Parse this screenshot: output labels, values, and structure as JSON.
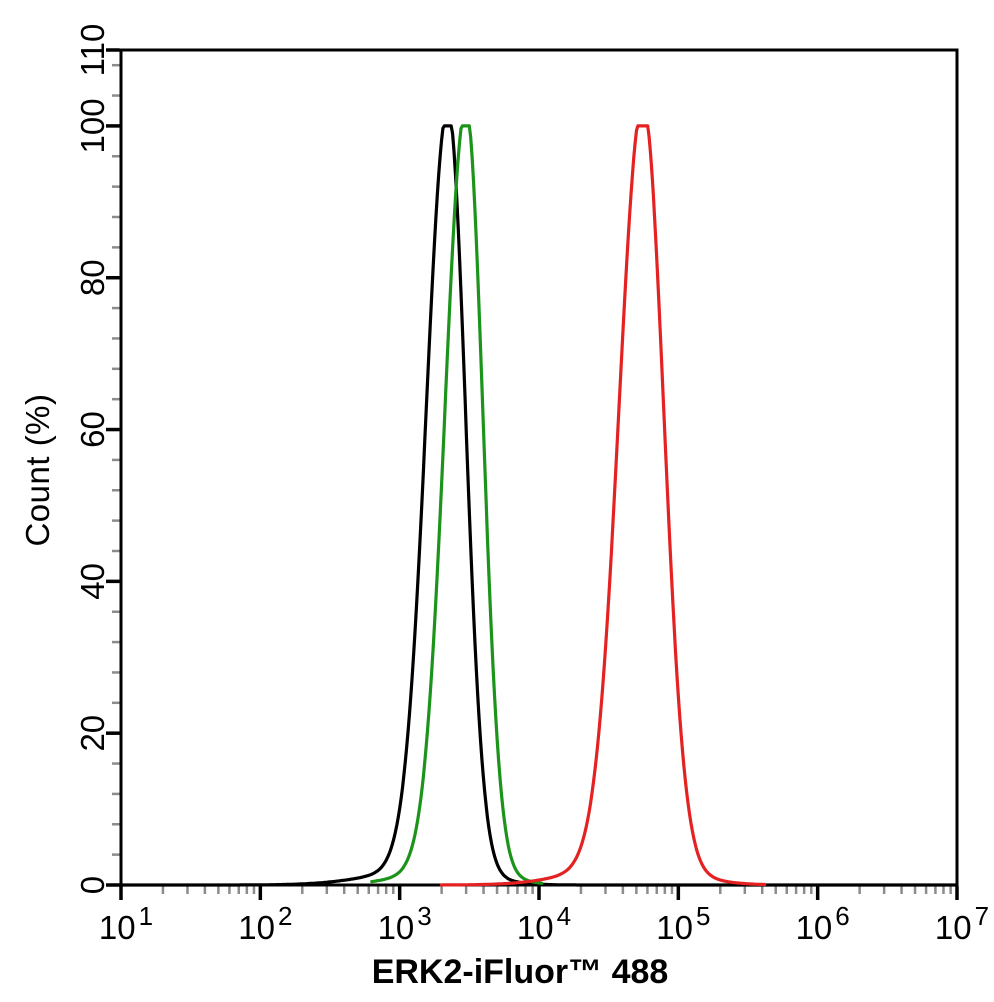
{
  "figure": {
    "background": "#ffffff"
  },
  "chart_data": {
    "type": "line",
    "subtype": "flow-cytometry-overlay-histogram",
    "title": "",
    "xlabel": "ERK2-iFluor™ 488",
    "ylabel": "Count  (%)",
    "x_scale": "log10",
    "x_range": [
      10,
      10000000
    ],
    "x_tick_exponents": [
      1,
      2,
      3,
      4,
      5,
      6,
      7
    ],
    "x_minor_ticks": "2x-9x each decade",
    "y_range": [
      0,
      110
    ],
    "y_ticks": [
      0,
      20,
      40,
      60,
      80,
      100,
      110
    ],
    "y_minor_tick_step": 4,
    "grid": false,
    "legend": "none",
    "axis_color": "#000000",
    "minor_tick_color": "#8c8c8c",
    "series": [
      {
        "name": "black-peak",
        "color": "#000000",
        "peak_x": 2200,
        "peak_y": 100,
        "draw_range_log": [
          1.0,
          7.0
        ],
        "components": [
          {
            "amp": 100,
            "center_log": 3.347,
            "sigma_left_log": 0.155,
            "sigma_right_log": 0.125
          },
          {
            "amp": 2.5,
            "center_log": 3.3,
            "sigma_left_log": 0.42,
            "sigma_right_log": 0.28
          }
        ]
      },
      {
        "name": "green-peak",
        "color": "#1c941c",
        "peak_x": 3000,
        "peak_y": 100,
        "draw_range_log": [
          2.8,
          4.02
        ],
        "components": [
          {
            "amp": 100,
            "center_log": 3.476,
            "sigma_left_log": 0.15,
            "sigma_right_log": 0.12
          },
          {
            "amp": 2.5,
            "center_log": 3.45,
            "sigma_left_log": 0.35,
            "sigma_right_log": 0.26
          }
        ]
      },
      {
        "name": "red-peak",
        "color": "#e42222",
        "peak_x": 56000,
        "peak_y": 100,
        "draw_range_log": [
          3.3,
          5.62
        ],
        "components": [
          {
            "amp": 100,
            "center_log": 4.746,
            "sigma_left_log": 0.17,
            "sigma_right_log": 0.148
          },
          {
            "amp": 3.0,
            "center_log": 4.7,
            "sigma_left_log": 0.4,
            "sigma_right_log": 0.33
          }
        ]
      }
    ]
  }
}
